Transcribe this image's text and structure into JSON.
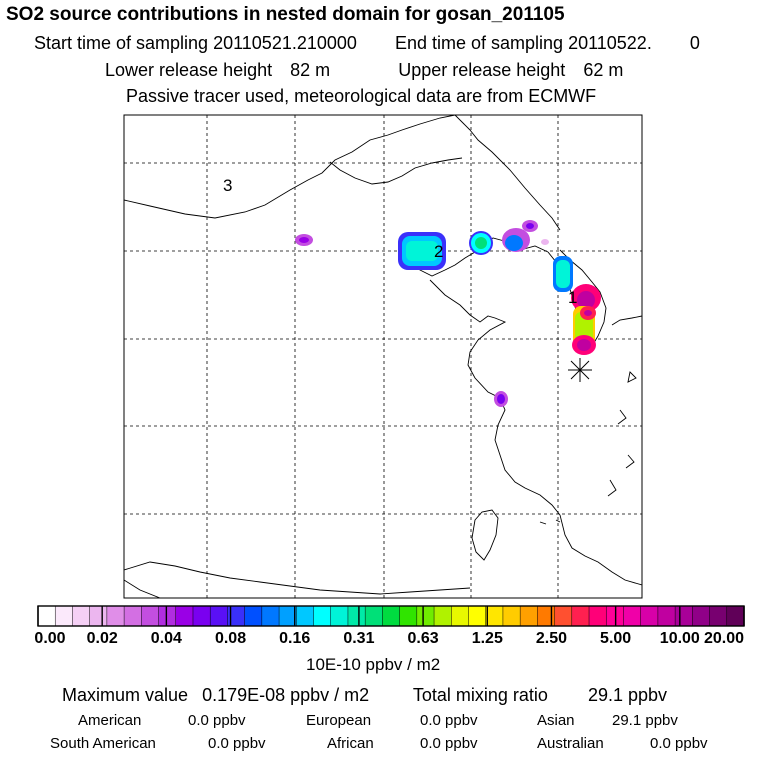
{
  "header": {
    "title": "SO2 source contributions in nested domain for gosan_201105",
    "start_label": "Start time of sampling",
    "start_value": "20110521.210000",
    "end_label": "End time of sampling",
    "end_value": "20110522.",
    "end_suffix": "0",
    "lower_label": "Lower release height",
    "lower_value": "82 m",
    "upper_label": "Upper release height",
    "upper_value": "62 m",
    "note": "Passive tracer used, meteorological data are from ECMWF"
  },
  "map": {
    "labels": [
      "3",
      "2",
      "1"
    ],
    "receptor_marker": "asterisk"
  },
  "colorbar": {
    "ticks": [
      "0.00",
      "0.02",
      "0.04",
      "0.08",
      "0.16",
      "0.31",
      "0.63",
      "1.25",
      "2.50",
      "5.00",
      "10.00",
      "20.00"
    ],
    "colors": [
      "#ffffff",
      "#fbe9fb",
      "#f5d0f5",
      "#ecb6ef",
      "#e08ee8",
      "#d36fe3",
      "#c34ee0",
      "#b12de0",
      "#9a00e6",
      "#7a00f0",
      "#5a10f5",
      "#3a30fa",
      "#0050ff",
      "#0078ff",
      "#00a0ff",
      "#00c8ff",
      "#00ffff",
      "#00f4d8",
      "#00eaa8",
      "#00e078",
      "#00dc40",
      "#30e400",
      "#70ec00",
      "#b0f200",
      "#e8f800",
      "#ffff00",
      "#ffe600",
      "#ffcc00",
      "#ffa000",
      "#ff7a00",
      "#ff5030",
      "#ff2050",
      "#ff0078",
      "#ff0098",
      "#f000a8",
      "#d800a8",
      "#c000a0",
      "#a80098",
      "#900088",
      "#780070",
      "#600058"
    ],
    "unit": "10E-10 ppbv / m2"
  },
  "summary": {
    "max_label": "Maximum value",
    "max_value": "0.179E-08 ppbv / m2",
    "total_label": "Total mixing ratio",
    "total_value": "29.1 ppbv",
    "contributions": [
      {
        "name": "American",
        "value": "0.0 ppbv"
      },
      {
        "name": "European",
        "value": "0.0 ppbv"
      },
      {
        "name": "Asian",
        "value": "29.1 ppbv"
      },
      {
        "name": "South American",
        "value": "0.0 ppbv"
      },
      {
        "name": "African",
        "value": "0.0 ppbv"
      },
      {
        "name": "Australian",
        "value": "0.0 ppbv"
      }
    ]
  }
}
